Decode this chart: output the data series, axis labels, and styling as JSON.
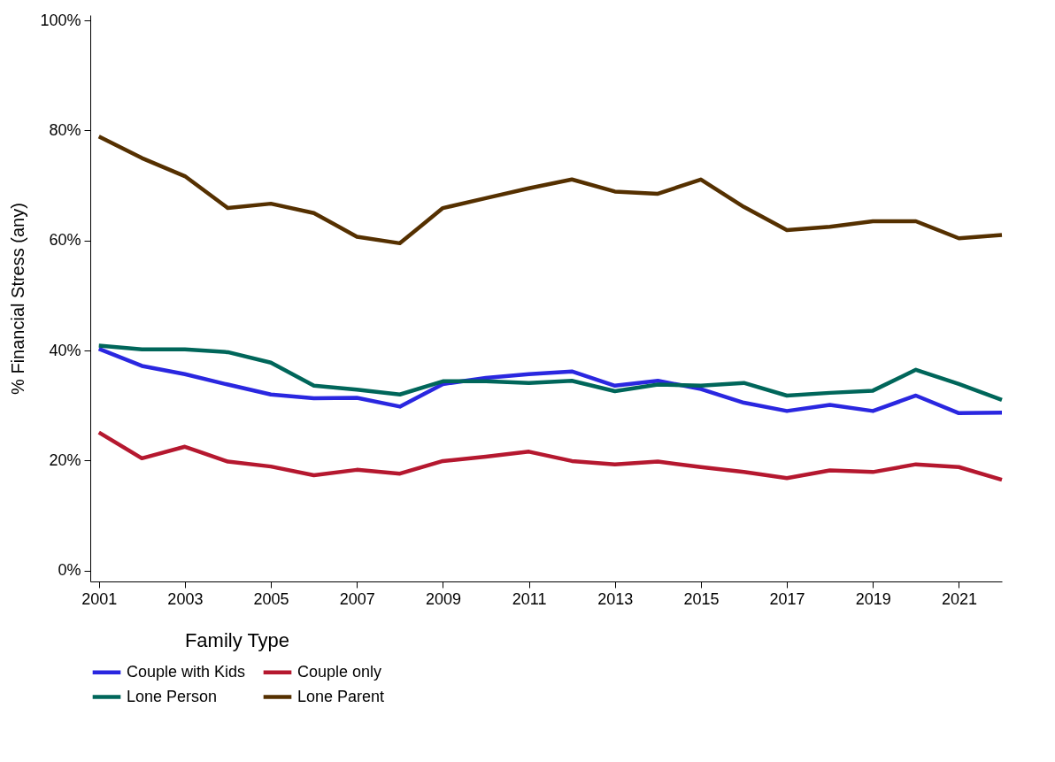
{
  "chart_data": {
    "type": "line",
    "ylabel": "% Financial Stress (any)",
    "legend_title": "Family Type",
    "legend": "bottom",
    "x": [
      2001,
      2002,
      2003,
      2004,
      2005,
      2006,
      2007,
      2008,
      2009,
      2010,
      2011,
      2012,
      2013,
      2014,
      2015,
      2016,
      2017,
      2018,
      2019,
      2020,
      2021,
      2022
    ],
    "xlim": [
      2000.8,
      2022
    ],
    "xticks": [
      2001,
      2003,
      2005,
      2007,
      2009,
      2011,
      2013,
      2015,
      2017,
      2019,
      2021
    ],
    "ylim": [
      -2,
      101
    ],
    "yticks": [
      {
        "value": 0,
        "label": "0%"
      },
      {
        "value": 20,
        "label": "20%"
      },
      {
        "value": 40,
        "label": "40%"
      },
      {
        "value": 60,
        "label": "60%"
      },
      {
        "value": 80,
        "label": "80%"
      },
      {
        "value": 100,
        "label": "100%"
      }
    ],
    "series": [
      {
        "name": "Couple with Kids",
        "color": "#2a27e0",
        "values": [
          40.3,
          37.2,
          35.7,
          33.8,
          32.0,
          31.3,
          31.4,
          29.8,
          33.9,
          35.0,
          35.7,
          36.2,
          33.6,
          34.5,
          33.0,
          30.5,
          29.0,
          30.1,
          29.0,
          31.8,
          28.6,
          28.7
        ]
      },
      {
        "name": "Couple only",
        "color": "#b5182f",
        "values": [
          25.1,
          20.4,
          22.5,
          19.8,
          18.9,
          17.3,
          18.3,
          17.6,
          19.9,
          20.7,
          21.6,
          19.9,
          19.3,
          19.8,
          18.8,
          17.9,
          16.8,
          18.2,
          17.9,
          19.3,
          18.8,
          16.5
        ]
      },
      {
        "name": "Lone Person",
        "color": "#00665a",
        "values": [
          40.9,
          40.2,
          40.2,
          39.7,
          37.8,
          33.6,
          32.9,
          32.0,
          34.4,
          34.4,
          34.1,
          34.5,
          32.6,
          33.8,
          33.6,
          34.1,
          31.8,
          32.3,
          32.7,
          36.5,
          33.9,
          31.0
        ]
      },
      {
        "name": "Lone Parent",
        "color": "#553000",
        "values": [
          78.9,
          75.0,
          71.7,
          65.9,
          66.7,
          65.0,
          60.7,
          59.5,
          65.9,
          67.7,
          69.5,
          71.1,
          68.9,
          68.5,
          71.1,
          66.1,
          61.9,
          62.5,
          63.5,
          63.5,
          60.4,
          61.0
        ]
      }
    ]
  }
}
